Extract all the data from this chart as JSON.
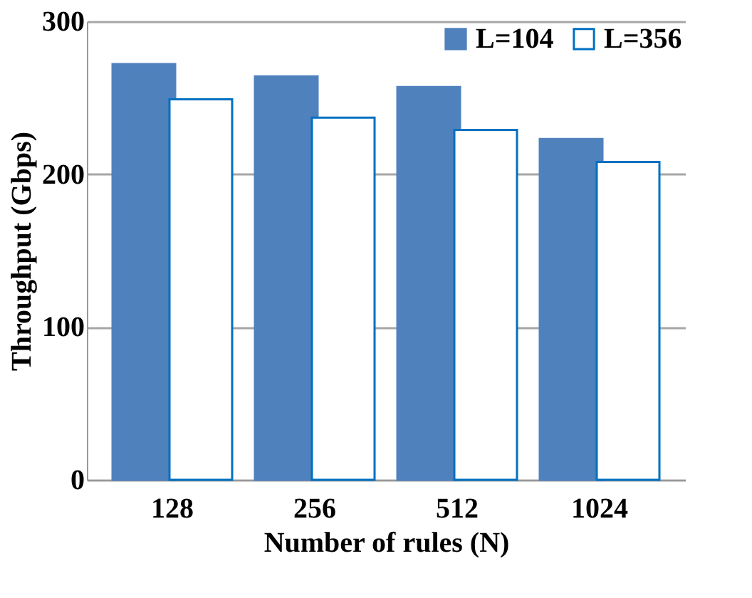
{
  "chart_data": {
    "type": "bar",
    "xlabel": "Number of rules (N)",
    "ylabel": "Throughput (Gbps)",
    "categories": [
      "128",
      "256",
      "512",
      "1024"
    ],
    "series": [
      {
        "name": "L=104",
        "color": "#4f81bd",
        "values": [
          272,
          264,
          257,
          223
        ]
      },
      {
        "name": "L=356",
        "color": "#0070c0",
        "values": [
          249,
          237,
          229,
          208
        ]
      }
    ],
    "ylim": [
      0,
      300
    ],
    "yticks": [
      0,
      100,
      200,
      300
    ],
    "grid": "y",
    "legend": "top right"
  }
}
